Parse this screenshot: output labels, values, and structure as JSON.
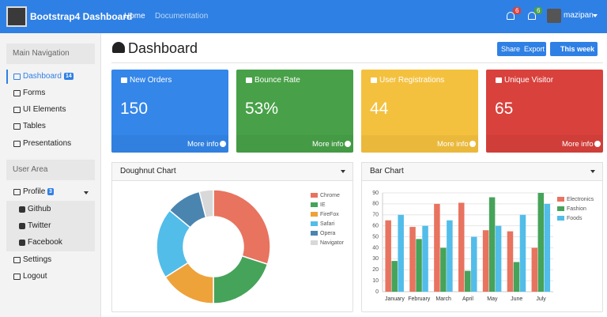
{
  "navbar": {
    "brand": "Bootstrap4 Dashboard",
    "links": [
      "Home",
      "Documentation"
    ],
    "badges": [
      "6",
      "6"
    ],
    "user": "mazipan"
  },
  "sidebar": {
    "sections": [
      {
        "title": "Main Navigation",
        "items": [
          {
            "label": "Dashboard",
            "badge": "14"
          },
          {
            "label": "Forms"
          },
          {
            "label": "UI Elements"
          },
          {
            "label": "Tables"
          },
          {
            "label": "Presentations"
          }
        ]
      },
      {
        "title": "User Area",
        "items": [
          {
            "label": "Profile",
            "badge": "3",
            "children": [
              "Github",
              "Twitter",
              "Facebook"
            ]
          },
          {
            "label": "Settings"
          },
          {
            "label": "Logout"
          }
        ]
      }
    ]
  },
  "header": {
    "title": "Dashboard",
    "buttons": [
      "Share",
      "Export",
      "This week"
    ]
  },
  "cards": [
    {
      "title": "New Orders",
      "value": "150",
      "link": "More info",
      "color": "#3486e9"
    },
    {
      "title": "Bounce Rate",
      "value": "53%",
      "link": "More info",
      "color": "#48a148"
    },
    {
      "title": "User Registrations",
      "value": "44",
      "link": "More info",
      "color": "#f4c13f"
    },
    {
      "title": "Unique Visitor",
      "value": "65",
      "link": "More info",
      "color": "#d9413c"
    }
  ],
  "chart_data": [
    {
      "type": "doughnut",
      "title": "Doughnut Chart",
      "categories": [
        "Chrome",
        "IE",
        "FireFox",
        "Safari",
        "Opera",
        "Navigator"
      ],
      "values": [
        30,
        20,
        16,
        20,
        10,
        4
      ],
      "colors": [
        "#e8735f",
        "#46a35a",
        "#eea23a",
        "#52bde9",
        "#4a85b0",
        "#d8d8d8"
      ]
    },
    {
      "type": "bar",
      "title": "Bar Chart",
      "categories": [
        "January",
        "February",
        "March",
        "April",
        "May",
        "June",
        "July"
      ],
      "series": [
        {
          "name": "Electronics",
          "color": "#e8735f",
          "values": [
            65,
            59,
            80,
            81,
            56,
            55,
            40
          ]
        },
        {
          "name": "Fashion",
          "color": "#46a35a",
          "values": [
            28,
            48,
            40,
            19,
            86,
            27,
            90
          ]
        },
        {
          "name": "Foods",
          "color": "#52bde9",
          "values": [
            70,
            60,
            65,
            50,
            60,
            70,
            80
          ]
        }
      ],
      "ylim": [
        0,
        90
      ],
      "yticks": [
        0,
        10,
        20,
        30,
        40,
        50,
        60,
        70,
        80,
        90
      ],
      "grid": true
    }
  ]
}
